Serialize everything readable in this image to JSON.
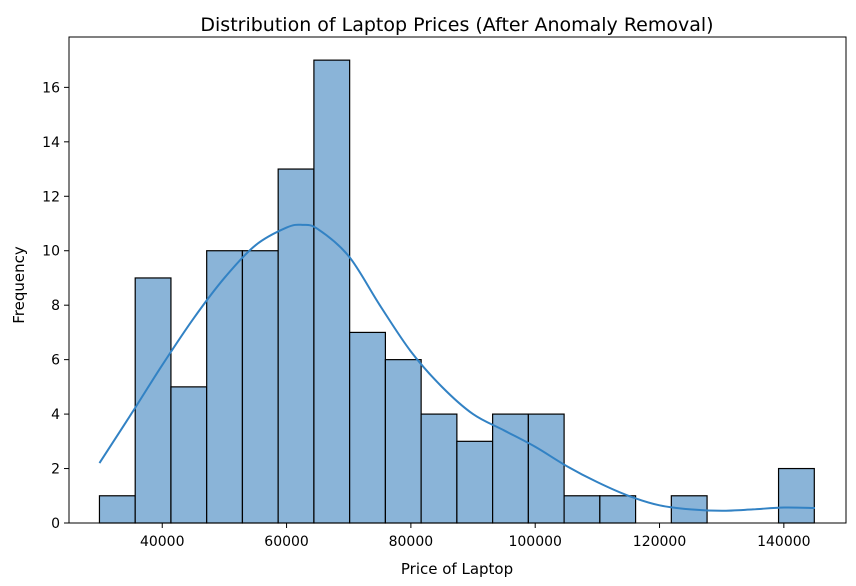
{
  "chart_data": {
    "type": "bar",
    "title": "Distribution of Laptop Prices (After Anomaly Removal)",
    "xlabel": "Price of Laptop",
    "ylabel": "Frequency",
    "xlim": [
      25000,
      150000
    ],
    "ylim": [
      0,
      17.85
    ],
    "x_ticks": [
      40000,
      60000,
      80000,
      100000,
      120000,
      140000
    ],
    "y_ticks": [
      0,
      2,
      4,
      6,
      8,
      10,
      12,
      14,
      16
    ],
    "grid": false,
    "bins": [
      {
        "start": 29900,
        "end": 35650,
        "count": 1
      },
      {
        "start": 35650,
        "end": 41400,
        "count": 9
      },
      {
        "start": 41400,
        "end": 47150,
        "count": 5
      },
      {
        "start": 47150,
        "end": 52900,
        "count": 10
      },
      {
        "start": 52900,
        "end": 58650,
        "count": 10
      },
      {
        "start": 58650,
        "end": 64400,
        "count": 13
      },
      {
        "start": 64400,
        "end": 70150,
        "count": 17
      },
      {
        "start": 70150,
        "end": 75900,
        "count": 7
      },
      {
        "start": 75900,
        "end": 81650,
        "count": 6
      },
      {
        "start": 81650,
        "end": 87400,
        "count": 4
      },
      {
        "start": 87400,
        "end": 93150,
        "count": 3
      },
      {
        "start": 93150,
        "end": 98900,
        "count": 4
      },
      {
        "start": 98900,
        "end": 104650,
        "count": 4
      },
      {
        "start": 104650,
        "end": 110400,
        "count": 1
      },
      {
        "start": 110400,
        "end": 116150,
        "count": 1
      },
      {
        "start": 116150,
        "end": 121900,
        "count": 0
      },
      {
        "start": 121900,
        "end": 127650,
        "count": 1
      },
      {
        "start": 127650,
        "end": 133400,
        "count": 0
      },
      {
        "start": 133400,
        "end": 139150,
        "count": 0
      },
      {
        "start": 139150,
        "end": 144900,
        "count": 2
      }
    ],
    "kde": {
      "x": [
        29900,
        35000,
        40000,
        45000,
        50000,
        55000,
        60000,
        62500,
        65000,
        70000,
        75000,
        80000,
        85000,
        90000,
        95000,
        100000,
        105000,
        110000,
        115000,
        120000,
        125000,
        130000,
        135000,
        140000,
        145000
      ],
      "y": [
        2.2,
        4.0,
        5.8,
        7.5,
        9.0,
        10.2,
        10.85,
        10.95,
        10.8,
        9.8,
        8.0,
        6.3,
        5.0,
        4.0,
        3.4,
        2.8,
        2.1,
        1.5,
        1.0,
        0.65,
        0.5,
        0.45,
        0.5,
        0.57,
        0.55
      ]
    },
    "colors": {
      "bar_fill": "#8ab4d8",
      "bar_edge": "#000000",
      "kde_line": "#3282c4"
    }
  }
}
